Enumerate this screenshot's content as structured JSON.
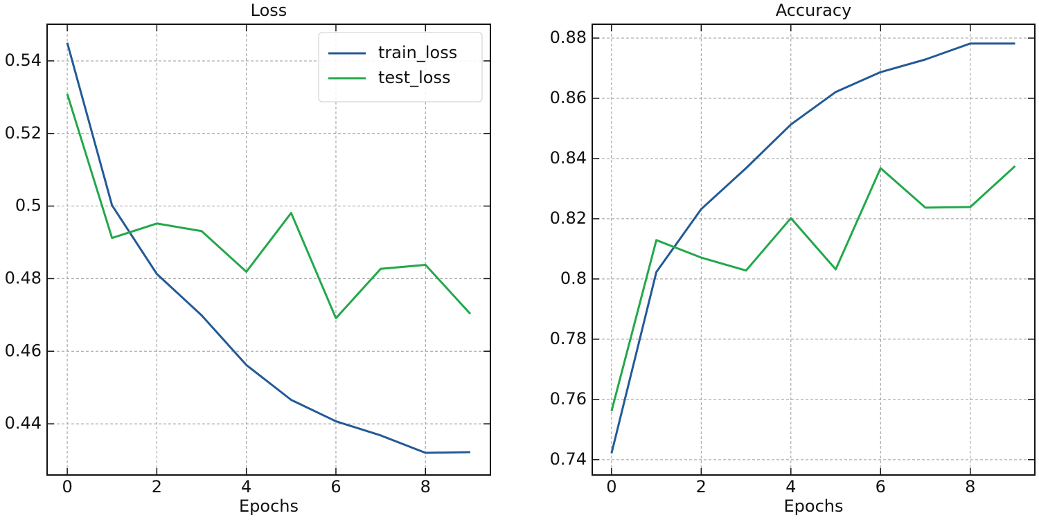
{
  "chart_data": [
    {
      "type": "line",
      "title": "Loss",
      "x_label": "Epochs",
      "x": [
        0,
        1,
        2,
        3,
        4,
        5,
        6,
        7,
        8,
        9
      ],
      "xlim": [
        -0.45,
        9.45
      ],
      "xticks": [
        0,
        2,
        4,
        6,
        8
      ],
      "ylim": [
        0.4259,
        0.5501
      ],
      "yticks": [
        0.44,
        0.46,
        0.48,
        0.5,
        0.52,
        0.54
      ],
      "grid": true,
      "legend": "upper right",
      "series": [
        {
          "name": "train_loss",
          "color": "#225a96",
          "values": [
            0.545,
            0.5002,
            0.4813,
            0.4699,
            0.4562,
            0.4466,
            0.4407,
            0.4368,
            0.432,
            0.4322
          ]
        },
        {
          "name": "test_loss",
          "color": "#22a84a",
          "values": [
            0.5309,
            0.4912,
            0.4952,
            0.4931,
            0.4819,
            0.4981,
            0.4691,
            0.4827,
            0.4838,
            0.4703
          ]
        }
      ]
    },
    {
      "type": "line",
      "title": "Accuracy",
      "x_label": "Epochs",
      "x": [
        0,
        1,
        2,
        3,
        4,
        5,
        6,
        7,
        8,
        9
      ],
      "xlim": [
        -0.43,
        9.44
      ],
      "xticks": [
        0,
        2,
        4,
        6,
        8
      ],
      "ylim": [
        0.7349,
        0.8846
      ],
      "yticks": [
        0.74,
        0.76,
        0.78,
        0.8,
        0.82,
        0.84,
        0.86,
        0.88
      ],
      "grid": true,
      "series": [
        {
          "color": "#225a96",
          "values": [
            0.7421,
            0.8023,
            0.8232,
            0.8368,
            0.8513,
            0.8621,
            0.8687,
            0.8729,
            0.8782,
            0.8782
          ]
        },
        {
          "color": "#22a84a",
          "values": [
            0.7561,
            0.8129,
            0.8071,
            0.8028,
            0.8202,
            0.8032,
            0.8368,
            0.8237,
            0.8239,
            0.8375
          ]
        }
      ]
    }
  ]
}
